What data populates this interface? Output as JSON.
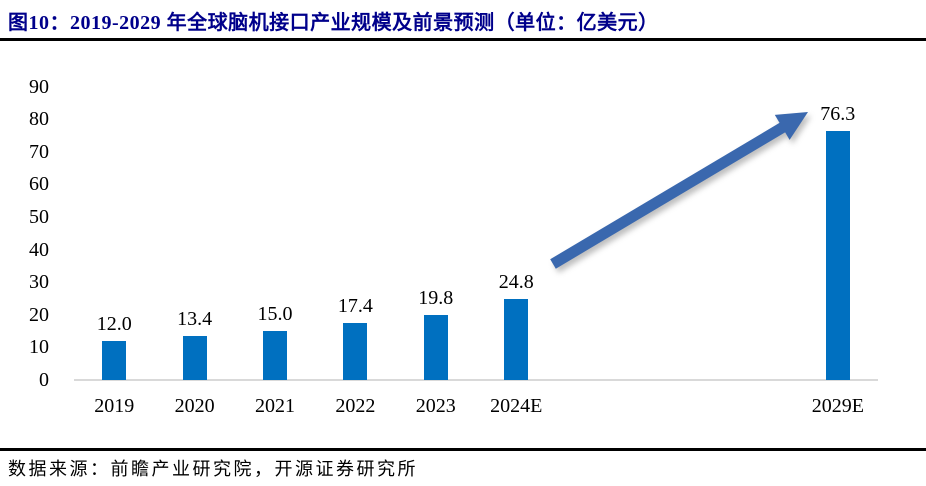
{
  "figure": {
    "title": "图10：2019-2029 年全球脑机接口产业规模及前景预测（单位：亿美元）",
    "source": "数据来源：前瞻产业研究院，开源证券研究所"
  },
  "colors": {
    "title_text": "#00008B",
    "bar_fill": "#0070C0",
    "arrow_fill": "#3A68AE",
    "axis_line": "#D9D9D9",
    "divider": "#000000",
    "label_text": "#000000"
  },
  "chart_data": {
    "type": "bar",
    "title": "2019-2029 年全球脑机接口产业规模及前景预测",
    "unit": "亿美元",
    "categories": [
      "2019",
      "2020",
      "2021",
      "2022",
      "2023",
      "2024E",
      "2029E"
    ],
    "values": [
      12.0,
      13.4,
      15.0,
      17.4,
      19.8,
      24.8,
      76.3
    ],
    "value_labels": [
      "12.0",
      "13.4",
      "15.0",
      "17.4",
      "19.8",
      "24.8",
      "76.3"
    ],
    "slot_index": [
      0,
      1,
      2,
      3,
      4,
      5,
      9
    ],
    "total_slots": 10,
    "xlabel": "",
    "ylabel": "",
    "ylim": [
      0,
      90
    ],
    "yticks": [
      0,
      10,
      20,
      30,
      40,
      50,
      60,
      70,
      80,
      90
    ],
    "grid": false,
    "legend": "none",
    "annotation": "upward growth arrow from 2024E bar toward 2029E value"
  }
}
